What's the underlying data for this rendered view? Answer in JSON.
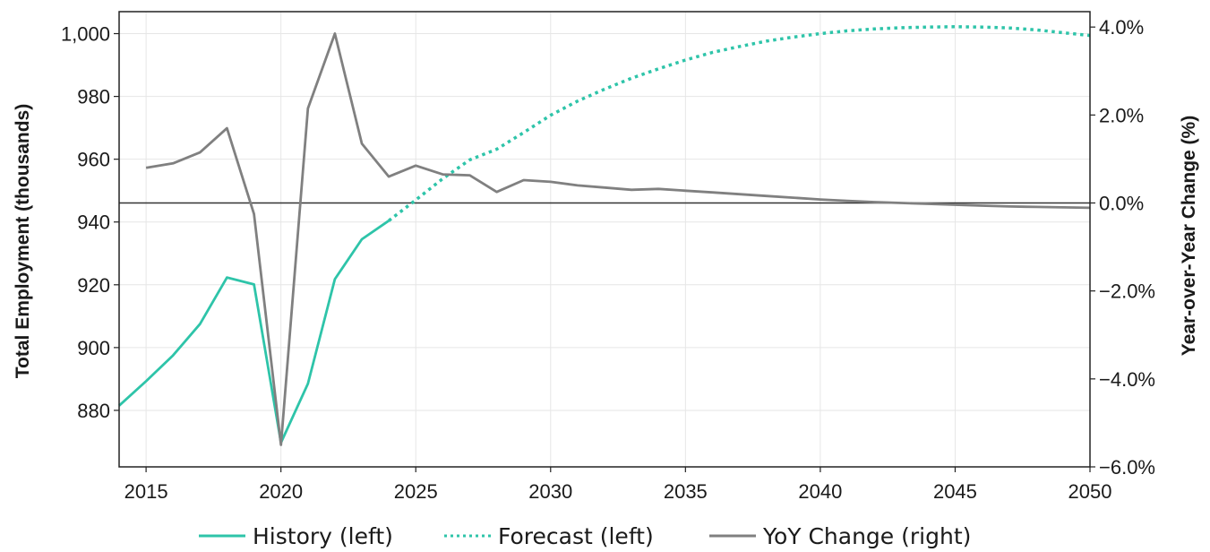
{
  "chart_data": {
    "type": "line",
    "title": "",
    "ylabel_left": "Total Employment (thousands)",
    "ylabel_right": "Year-over-Year Change (%)",
    "xlim": [
      2014,
      2050
    ],
    "ylim_left": [
      862,
      1007
    ],
    "ylim_right": [
      -6.0,
      4.35
    ],
    "x_ticks": [
      "2015",
      "2020",
      "2025",
      "2030",
      "2035",
      "2040",
      "2045",
      "2050"
    ],
    "y_left_ticks": [
      "880",
      "900",
      "920",
      "940",
      "960",
      "980",
      "1,000"
    ],
    "y_right_ticks": [
      "−6.0%",
      "−4.0%",
      "−2.0%",
      "0.0%",
      "2.0%",
      "4.0%"
    ],
    "grid": true,
    "legend_position": "bottom",
    "colors": {
      "history": "#2ec4a9",
      "forecast": "#2ec4a9",
      "yoy": "#808080",
      "zero_line": "#333333"
    },
    "series": [
      {
        "name": "History (left)",
        "axis": "left",
        "style": "solid",
        "x": [
          2014,
          2015,
          2016,
          2017,
          2018,
          2019,
          2020,
          2021,
          2022,
          2023,
          2024
        ],
        "values": [
          881.5,
          889.3,
          897.5,
          907.5,
          922.3,
          920.1,
          869.7,
          888.5,
          921.8,
          934.5,
          940.4
        ]
      },
      {
        "name": "Forecast (left)",
        "axis": "left",
        "style": "dotted",
        "x": [
          2024,
          2025,
          2026,
          2027,
          2028,
          2029,
          2030,
          2031,
          2032,
          2033,
          2034,
          2035,
          2036,
          2037,
          2038,
          2039,
          2040,
          2041,
          2042,
          2043,
          2044,
          2045,
          2046,
          2047,
          2048,
          2049,
          2050
        ],
        "values": [
          940.4,
          947.0,
          953.8,
          959.8,
          963.2,
          968.5,
          974.0,
          978.5,
          982.3,
          985.8,
          988.8,
          991.6,
          994.0,
          995.9,
          997.6,
          998.9,
          1000.0,
          1000.9,
          1001.5,
          1001.9,
          1002.1,
          1002.2,
          1002.1,
          1001.8,
          1001.2,
          1000.3,
          999.4
        ]
      },
      {
        "name": "YoY Change (right)",
        "axis": "right",
        "style": "solid",
        "x": [
          2015,
          2016,
          2017,
          2018,
          2019,
          2020,
          2021,
          2022,
          2023,
          2024,
          2025,
          2026,
          2027,
          2028,
          2029,
          2030,
          2031,
          2032,
          2033,
          2034,
          2035,
          2036,
          2037,
          2038,
          2039,
          2040,
          2041,
          2042,
          2043,
          2044,
          2045,
          2046,
          2047,
          2048,
          2049,
          2050
        ],
        "values": [
          0.8,
          0.9,
          1.15,
          1.7,
          -0.25,
          -5.5,
          2.15,
          3.85,
          1.35,
          0.6,
          0.85,
          0.65,
          0.63,
          0.25,
          0.52,
          0.48,
          0.4,
          0.35,
          0.3,
          0.32,
          0.28,
          0.24,
          0.2,
          0.16,
          0.12,
          0.08,
          0.05,
          0.02,
          0.0,
          -0.02,
          -0.04,
          -0.06,
          -0.08,
          -0.09,
          -0.1,
          -0.11
        ]
      }
    ]
  }
}
